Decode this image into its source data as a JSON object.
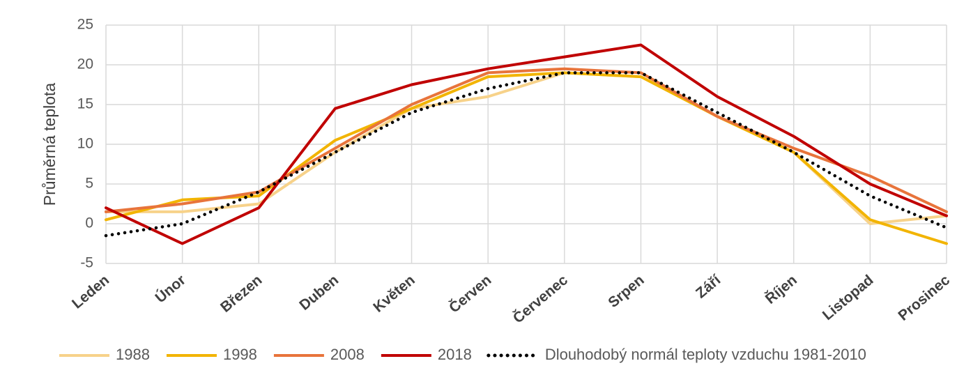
{
  "chart_data": {
    "type": "line",
    "title": "",
    "xlabel": "",
    "ylabel": "Průměrná teplota",
    "ylim": [
      -5,
      25
    ],
    "yticks": [
      -5,
      0,
      5,
      10,
      15,
      20,
      25
    ],
    "grid": true,
    "legend_position": "bottom",
    "categories": [
      "Leden",
      "Únor",
      "Březen",
      "Duben",
      "Květen",
      "Červen",
      "Červenec",
      "Srpen",
      "Září",
      "Říjen",
      "Listopad",
      "Prosinec"
    ],
    "series": [
      {
        "name": "1988",
        "color": "#F7D28A",
        "style": "solid",
        "values": [
          1.5,
          1.5,
          2.5,
          9.0,
          14.5,
          16.0,
          19.0,
          18.5,
          13.5,
          9.0,
          0.0,
          1.0
        ]
      },
      {
        "name": "1998",
        "color": "#F2B400",
        "style": "solid",
        "values": [
          0.5,
          3.0,
          3.5,
          10.5,
          14.5,
          18.5,
          19.0,
          18.5,
          13.5,
          9.0,
          0.5,
          -2.5
        ]
      },
      {
        "name": "2008",
        "color": "#E8743B",
        "style": "solid",
        "values": [
          1.5,
          2.5,
          4.0,
          9.5,
          15.0,
          19.0,
          19.5,
          19.0,
          13.5,
          9.5,
          6.0,
          1.5
        ]
      },
      {
        "name": "2018",
        "color": "#C00000",
        "style": "solid",
        "values": [
          2.0,
          -2.5,
          2.0,
          14.5,
          17.5,
          19.5,
          21.0,
          22.5,
          16.0,
          11.0,
          5.0,
          1.0
        ]
      },
      {
        "name": "Dlouhodobý normál teploty vzduchu 1981-2010",
        "color": "#000000",
        "style": "dotted",
        "values": [
          -1.5,
          0.0,
          4.0,
          9.0,
          14.0,
          17.0,
          19.0,
          19.0,
          14.0,
          9.0,
          3.5,
          -0.5
        ]
      }
    ]
  }
}
